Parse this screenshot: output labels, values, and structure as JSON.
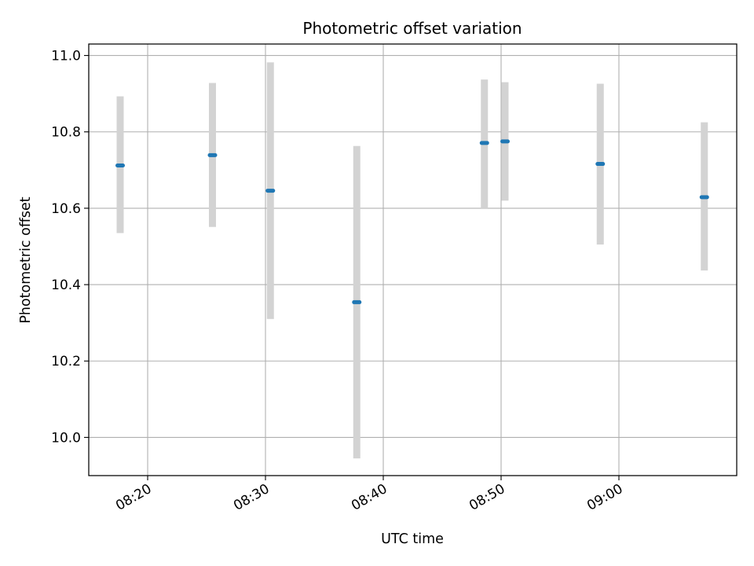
{
  "chart_data": {
    "type": "scatter",
    "title": "Photometric offset variation",
    "xlabel": "UTC time",
    "ylabel": "Photometric offset",
    "x_axis_type": "time",
    "xlim": [
      "08:15:00",
      "09:10:00"
    ],
    "ylim": [
      9.9,
      11.03
    ],
    "x_ticks": [
      "08:20",
      "08:30",
      "08:40",
      "08:50",
      "09:00"
    ],
    "y_ticks": [
      10.0,
      10.2,
      10.4,
      10.6,
      10.8,
      11.0
    ],
    "y_tick_labels": [
      "10.0",
      "10.2",
      "10.4",
      "10.6",
      "10.8",
      "11.0"
    ],
    "x_tick_rotation_deg": 30,
    "grid": true,
    "legend": "none",
    "series": [
      {
        "values": [
          {
            "x": "08:17:40",
            "y": 10.712,
            "yerr_low": 10.535,
            "yerr_high": 10.893
          },
          {
            "x": "08:25:30",
            "y": 10.739,
            "yerr_low": 10.551,
            "yerr_high": 10.928
          },
          {
            "x": "08:30:25",
            "y": 10.646,
            "yerr_low": 10.31,
            "yerr_high": 10.982
          },
          {
            "x": "08:37:45",
            "y": 10.354,
            "yerr_low": 9.945,
            "yerr_high": 10.763
          },
          {
            "x": "08:48:35",
            "y": 10.771,
            "yerr_low": 10.6,
            "yerr_high": 10.937
          },
          {
            "x": "08:50:20",
            "y": 10.775,
            "yerr_low": 10.62,
            "yerr_high": 10.93
          },
          {
            "x": "08:58:25",
            "y": 10.716,
            "yerr_low": 10.505,
            "yerr_high": 10.926
          },
          {
            "x": "09:07:15",
            "y": 10.629,
            "yerr_low": 10.437,
            "yerr_high": 10.825
          }
        ]
      }
    ],
    "colors": {
      "marker": "#1f77b4",
      "errorbar": "#d3d3d3",
      "grid": "#b0b0b0",
      "axes": "#000000"
    }
  }
}
